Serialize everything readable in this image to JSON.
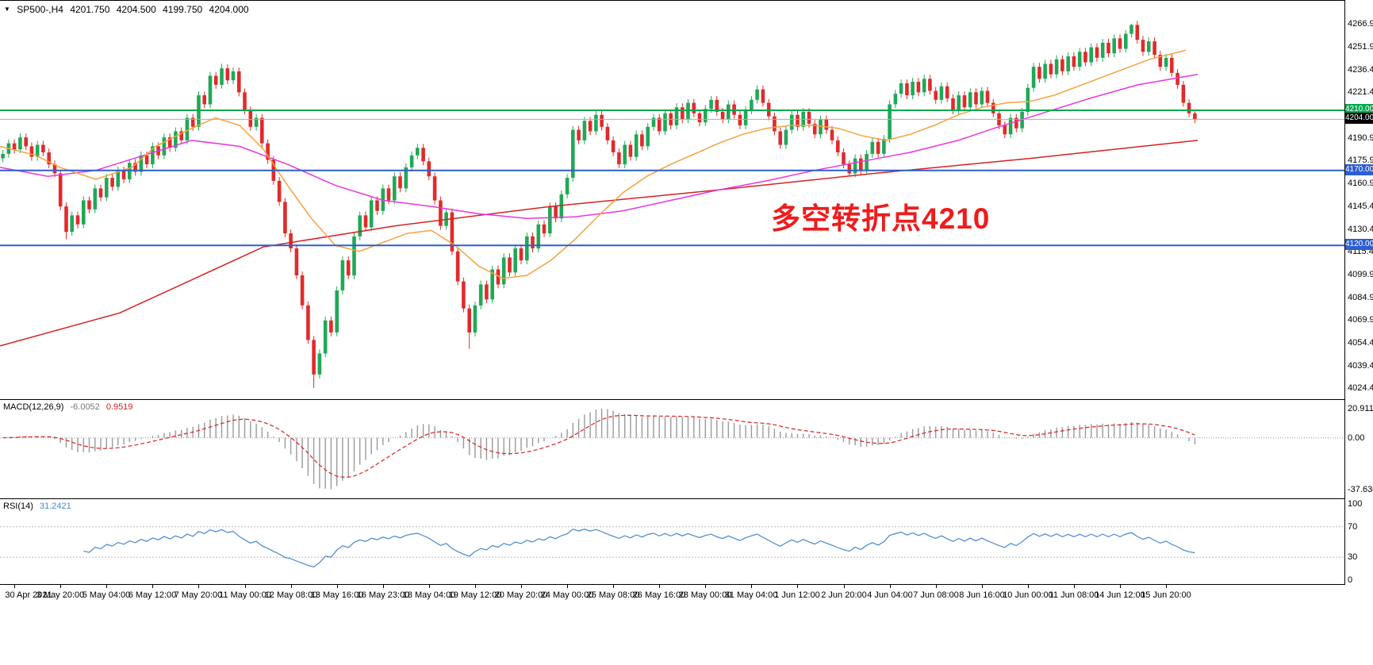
{
  "header": {
    "dropdown_glyph": "▼",
    "symbol_timeframe": "SP500-,H4",
    "open": "4201.750",
    "high": "4204.500",
    "low": "4199.750",
    "close": "4204.000"
  },
  "annotation": {
    "text": "多空转折点4210",
    "color": "#EE1C1C"
  },
  "colors": {
    "candle_up": "#21A857",
    "candle_down": "#E02B2B",
    "macd_hist": "#9A9A9A",
    "macd_signal": "#D62121",
    "rsi_line": "#4488D0",
    "level_dotted": "#B8B8B8",
    "zero_dotted": "#999999"
  },
  "chart_data": {
    "type": "candlestick",
    "symbol": "SP500-",
    "timeframe": "H4",
    "price_panel": {
      "ylim": [
        4017,
        4283
      ],
      "axis_ticks": [
        "4266.930",
        "4251.915",
        "4236.445",
        "4221.430",
        "4190.945",
        "4175.930",
        "4160.915",
        "4145.445",
        "4130.430",
        "4115.415",
        "4099.945",
        "4084.930",
        "4069.915",
        "4054.445",
        "4039.430",
        "4024.415"
      ],
      "first_open": 4178,
      "wick": 2.6,
      "closes": [
        4181,
        4188,
        4184,
        4192,
        4186,
        4179,
        4187,
        4182,
        4174,
        4168,
        4146,
        4129,
        4140,
        4134,
        4150,
        4144,
        4158,
        4152,
        4165,
        4159,
        4170,
        4164,
        4175,
        4169,
        4180,
        4174,
        4186,
        4180,
        4192,
        4185,
        4196,
        4190,
        4205,
        4199,
        4220,
        4214,
        4233,
        4227,
        4238,
        4230,
        4236,
        4222,
        4210,
        4199,
        4205,
        4188,
        4177,
        4163,
        4149,
        4128,
        4118,
        4100,
        4080,
        4057,
        4034,
        4048,
        4070,
        4062,
        4090,
        4110,
        4100,
        4126,
        4140,
        4132,
        4150,
        4143,
        4158,
        4150,
        4166,
        4158,
        4172,
        4180,
        4185,
        4176,
        4166,
        4150,
        4133,
        4142,
        4116,
        4096,
        4078,
        4062,
        4080,
        4094,
        4084,
        4104,
        4094,
        4112,
        4102,
        4118,
        4110,
        4126,
        4118,
        4134,
        4128,
        4146,
        4138,
        4154,
        4165,
        4197,
        4190,
        4203,
        4196,
        4207,
        4199,
        4190,
        4182,
        4174,
        4187,
        4179,
        4194,
        4186,
        4199,
        4205,
        4196,
        4208,
        4200,
        4212,
        4204,
        4215,
        4208,
        4202,
        4211,
        4217,
        4209,
        4204,
        4214,
        4207,
        4200,
        4210,
        4217,
        4224,
        4215,
        4206,
        4196,
        4187,
        4197,
        4207,
        4199,
        4209,
        4201,
        4194,
        4204,
        4197,
        4190,
        4182,
        4174,
        4168,
        4178,
        4170,
        4181,
        4189,
        4181,
        4191,
        4214,
        4221,
        4228,
        4220,
        4229,
        4222,
        4231,
        4223,
        4217,
        4226,
        4218,
        4210,
        4220,
        4212,
        4222,
        4214,
        4223,
        4215,
        4208,
        4200,
        4194,
        4205,
        4198,
        4209,
        4225,
        4239,
        4231,
        4241,
        4234,
        4244,
        4236,
        4246,
        4239,
        4249,
        4242,
        4252,
        4245,
        4255,
        4248,
        4258,
        4251,
        4261,
        4267,
        4257,
        4249,
        4256,
        4247,
        4239,
        4245,
        4235,
        4227,
        4215,
        4208,
        4204
      ],
      "low_overrides": {
        "11": 4124,
        "54": 4025,
        "81": 4051,
        "147": 4166
      },
      "high_overrides": {
        "38": 4241,
        "196": 4267.5
      },
      "hlines": [
        {
          "price": 4210.0,
          "label": "4210.000",
          "color": "#00A94F",
          "width": 2,
          "badge": "#00A94F"
        },
        {
          "price": 4204.0,
          "label": "4204.000",
          "color": "#ADADAD",
          "width": 1,
          "badge": "#000000"
        },
        {
          "price": 4170.0,
          "label": "4170.000",
          "color": "#2E5FD0",
          "width": 2,
          "badge": "#2E5FD0"
        },
        {
          "price": 4120.0,
          "label": "4120.000",
          "color": "#2E5FD0",
          "width": 2,
          "badge": "#2E5FD0"
        }
      ],
      "ma_lines": [
        {
          "name": "ma-slow-red",
          "color": "#D62121",
          "points": [
            [
              0,
              4053
            ],
            [
              0.1,
              4075
            ],
            [
              0.22,
              4119
            ],
            [
              0.33,
              4133
            ],
            [
              0.46,
              4146
            ],
            [
              0.6,
              4157
            ],
            [
              0.73,
              4168
            ],
            [
              0.86,
              4178
            ],
            [
              1,
              4190
            ]
          ]
        },
        {
          "name": "ma-mid-magenta",
          "color": "#E637DE",
          "points": [
            [
              0,
              4172
            ],
            [
              0.04,
              4166
            ],
            [
              0.08,
              4170
            ],
            [
              0.12,
              4180
            ],
            [
              0.16,
              4190
            ],
            [
              0.2,
              4186
            ],
            [
              0.24,
              4174
            ],
            [
              0.28,
              4160
            ],
            [
              0.32,
              4150
            ],
            [
              0.36,
              4146
            ],
            [
              0.4,
              4141
            ],
            [
              0.44,
              4138
            ],
            [
              0.48,
              4139
            ],
            [
              0.52,
              4143
            ],
            [
              0.56,
              4150
            ],
            [
              0.6,
              4157
            ],
            [
              0.64,
              4163
            ],
            [
              0.68,
              4170
            ],
            [
              0.72,
              4176
            ],
            [
              0.76,
              4182
            ],
            [
              0.8,
              4190
            ],
            [
              0.83,
              4198
            ],
            [
              0.87,
              4208
            ],
            [
              0.91,
              4218
            ],
            [
              0.95,
              4227
            ],
            [
              1,
              4234
            ]
          ]
        },
        {
          "name": "ma-fast-orange",
          "color": "#F6A23B",
          "points": [
            [
              0,
              4186
            ],
            [
              0.03,
              4180
            ],
            [
              0.05,
              4172
            ],
            [
              0.08,
              4164
            ],
            [
              0.11,
              4172
            ],
            [
              0.13,
              4186
            ],
            [
              0.16,
              4198
            ],
            [
              0.18,
              4205
            ],
            [
              0.2,
              4200
            ],
            [
              0.22,
              4184
            ],
            [
              0.24,
              4160
            ],
            [
              0.26,
              4138
            ],
            [
              0.28,
              4120
            ],
            [
              0.3,
              4116
            ],
            [
              0.32,
              4122
            ],
            [
              0.34,
              4128
            ],
            [
              0.36,
              4130
            ],
            [
              0.38,
              4120
            ],
            [
              0.4,
              4106
            ],
            [
              0.42,
              4098
            ],
            [
              0.44,
              4100
            ],
            [
              0.46,
              4110
            ],
            [
              0.48,
              4124
            ],
            [
              0.5,
              4140
            ],
            [
              0.52,
              4155
            ],
            [
              0.54,
              4166
            ],
            [
              0.56,
              4174
            ],
            [
              0.58,
              4181
            ],
            [
              0.6,
              4188
            ],
            [
              0.62,
              4194
            ],
            [
              0.64,
              4198
            ],
            [
              0.66,
              4200
            ],
            [
              0.68,
              4200
            ],
            [
              0.7,
              4198
            ],
            [
              0.72,
              4193
            ],
            [
              0.74,
              4190
            ],
            [
              0.76,
              4194
            ],
            [
              0.78,
              4200
            ],
            [
              0.8,
              4207
            ],
            [
              0.82,
              4212
            ],
            [
              0.84,
              4215
            ],
            [
              0.86,
              4216
            ],
            [
              0.88,
              4220
            ],
            [
              0.9,
              4226
            ],
            [
              0.92,
              4232
            ],
            [
              0.94,
              4238
            ],
            [
              0.96,
              4244
            ],
            [
              0.98,
              4248
            ],
            [
              0.99,
              4250
            ]
          ]
        }
      ]
    },
    "macd_panel": {
      "label": "MACD(12,26,9)",
      "value_main": "-6.0052",
      "value_signal": "0.9519",
      "fast": 12,
      "slow": 26,
      "signal": 9,
      "ylim": [
        -44,
        27.5
      ],
      "axis_ticks": [
        {
          "value": 20.9116,
          "label": "20.9116"
        },
        {
          "value": 0,
          "label": "0.00"
        },
        {
          "value": -37.6302,
          "label": "-37.6302"
        }
      ]
    },
    "rsi_panel": {
      "label": "RSI(14)",
      "value": "31.2421",
      "period": 14,
      "levels": [
        70,
        30
      ],
      "ylim": [
        0,
        100
      ],
      "axis_ticks": [
        {
          "value": 100,
          "label": "100"
        },
        {
          "value": 70,
          "label": "70"
        },
        {
          "value": 30,
          "label": "30"
        },
        {
          "value": 0,
          "label": "0"
        }
      ]
    },
    "time_axis": {
      "labels": [
        "30 Apr 2021",
        "3 May 20:00",
        "5 May 04:00",
        "6 May 12:00",
        "7 May 20:00",
        "11 May 00:00",
        "12 May 08:00",
        "13 May 16:00",
        "16 May 23:00",
        "18 May 04:00",
        "19 May 12:00",
        "20 May 20:00",
        "24 May 00:00",
        "25 May 08:00",
        "26 May 16:00",
        "28 May 00:00",
        "31 May 04:00",
        "1 Jun 12:00",
        "2 Jun 20:00",
        "4 Jun 04:00",
        "7 Jun 08:00",
        "8 Jun 16:00",
        "10 Jun 00:00",
        "11 Jun 08:00",
        "14 Jun 12:00",
        "15 Jun 20:00"
      ],
      "first_label_bar": 2,
      "bars_per_label": 8
    }
  }
}
